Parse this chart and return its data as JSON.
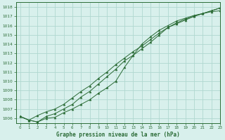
{
  "title": "Graphe pression niveau de la mer (hPa)",
  "bg_color": "#d8f0ec",
  "grid_color": "#b0d8d0",
  "line_color": "#2a6b35",
  "xlim": [
    -0.5,
    23
  ],
  "ylim": [
    1005.5,
    1018.5
  ],
  "yticks": [
    1006,
    1007,
    1008,
    1009,
    1010,
    1011,
    1012,
    1013,
    1014,
    1015,
    1016,
    1017,
    1018
  ],
  "xticks": [
    0,
    1,
    2,
    3,
    4,
    5,
    6,
    7,
    8,
    9,
    10,
    11,
    12,
    13,
    14,
    15,
    16,
    17,
    18,
    19,
    20,
    21,
    22,
    23
  ],
  "line1": {
    "x": [
      0,
      1,
      2,
      3,
      4,
      5,
      6,
      7,
      8,
      9,
      10,
      11,
      12,
      13,
      14,
      15,
      16,
      17,
      18,
      19,
      20,
      21,
      22,
      23
    ],
    "y": [
      1006.2,
      1005.8,
      1005.6,
      1006.0,
      1006.1,
      1006.6,
      1007.0,
      1007.5,
      1008.0,
      1008.7,
      1009.3,
      1010.0,
      1011.5,
      1012.8,
      1014.0,
      1014.8,
      1015.5,
      1016.0,
      1016.5,
      1016.8,
      1017.1,
      1017.3,
      1017.5,
      1017.6
    ]
  },
  "line2": {
    "x": [
      0,
      1,
      2,
      3,
      4,
      5,
      6,
      7,
      8,
      9,
      10,
      11,
      12,
      13,
      14,
      15,
      16,
      17,
      18,
      19,
      20,
      21,
      22,
      23
    ],
    "y": [
      1006.2,
      1005.8,
      1005.6,
      1006.2,
      1006.5,
      1007.0,
      1007.5,
      1008.3,
      1008.9,
      1009.7,
      1010.5,
      1011.3,
      1012.2,
      1012.8,
      1013.5,
      1014.2,
      1015.0,
      1015.8,
      1016.3,
      1016.7,
      1017.0,
      1017.3,
      1017.6,
      1017.9
    ]
  },
  "line3": {
    "x": [
      0,
      1,
      2,
      3,
      4,
      5,
      6,
      7,
      8,
      9,
      10,
      11,
      12,
      13,
      14,
      15,
      16,
      17,
      18,
      19,
      20,
      21,
      22,
      23
    ],
    "y": [
      1006.2,
      1005.8,
      1006.3,
      1006.7,
      1007.0,
      1007.5,
      1008.2,
      1008.9,
      1009.5,
      1010.3,
      1011.0,
      1011.8,
      1012.5,
      1013.2,
      1013.8,
      1014.5,
      1015.2,
      1015.8,
      1016.2,
      1016.6,
      1017.0,
      1017.3,
      1017.6,
      1017.9
    ]
  }
}
